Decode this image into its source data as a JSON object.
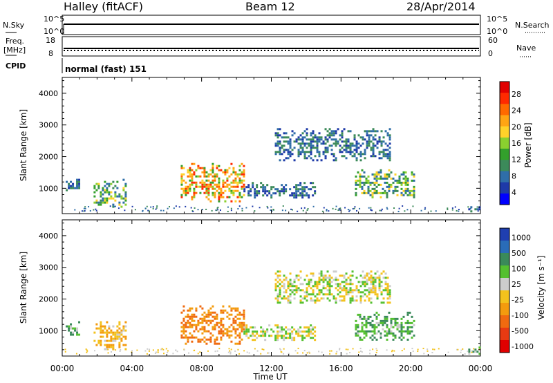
{
  "header": {
    "station": "Halley (fitACF)",
    "beam": "Beam 12",
    "date": "28/Apr/2014"
  },
  "labels": {
    "n_sky": "N.Sky",
    "n_search": "N.Search",
    "freq": "Freq.",
    "freq_unit": "[MHz]",
    "nave": "Nave",
    "cpid": "CPID",
    "cpid_value": "normal (fast) 151",
    "slant_range": "Slant Range [km]",
    "time": "Time UT",
    "power": "Power [dB]",
    "velocity": "Velocity [m s⁻¹]"
  },
  "chart_data": [
    {
      "type": "line",
      "name": "noise",
      "left_ticks": [
        "10^5",
        "10^0"
      ],
      "right_ticks": [
        "10^5",
        "10^0"
      ],
      "description": "N.Sky and N.Search noise levels nearly constant at ~10^4 through the day"
    },
    {
      "type": "scatter",
      "name": "freq-nave",
      "left_ticks": [
        "18",
        "8"
      ],
      "right_ticks": [
        "60",
        "0"
      ],
      "freq_mhz": 12,
      "nave": 40
    },
    {
      "type": "heatmap",
      "name": "power",
      "x_ticks": [
        "00:00",
        "04:00",
        "08:00",
        "12:00",
        "16:00",
        "20:00",
        "00:00"
      ],
      "y_ticks": [
        1000,
        2000,
        3000,
        4000
      ],
      "ylim": [
        200,
        4500
      ],
      "colorbar": {
        "label": "Power [dB]",
        "ticks": [
          4,
          8,
          12,
          16,
          20,
          24,
          28
        ],
        "colors": [
          "#0000ff",
          "#1e3aa8",
          "#2f6ea8",
          "#3c8a5a",
          "#33a02c",
          "#8bd02f",
          "#ffd22a",
          "#ffa514",
          "#ff6a00",
          "#ff2a00",
          "#e10000"
        ]
      },
      "echo_regions": [
        {
          "t_start": 0.2,
          "t_end": 1.0,
          "range_km": [
            900,
            1300
          ],
          "level": "low"
        },
        {
          "t_start": 1.8,
          "t_end": 3.6,
          "range_km": [
            400,
            1300
          ],
          "level": "medium"
        },
        {
          "t_start": 6.8,
          "t_end": 10.4,
          "range_km": [
            600,
            1800
          ],
          "level": "high"
        },
        {
          "t_start": 10.4,
          "t_end": 14.5,
          "range_km": [
            700,
            1200
          ],
          "level": "low"
        },
        {
          "t_start": 12.2,
          "t_end": 18.8,
          "range_km": [
            1900,
            2900
          ],
          "level": "low"
        },
        {
          "t_start": 16.8,
          "t_end": 20.2,
          "range_km": [
            700,
            1600
          ],
          "level": "medium"
        },
        {
          "t_start": 23.3,
          "t_end": 24.0,
          "range_km": [
            250,
            500
          ],
          "level": "low"
        }
      ]
    },
    {
      "type": "heatmap",
      "name": "velocity",
      "x_ticks": [
        "00:00",
        "04:00",
        "08:00",
        "12:00",
        "16:00",
        "20:00",
        "00:00"
      ],
      "y_ticks": [
        1000,
        2000,
        3000,
        4000
      ],
      "ylim": [
        200,
        4500
      ],
      "colorbar": {
        "label": "Velocity [m s⁻¹]",
        "ticks": [
          1000,
          500,
          100,
          25,
          -25,
          -100,
          -500,
          -1000
        ],
        "colors": [
          "#1f3fb0",
          "#2a6cb8",
          "#3a8a5a",
          "#54c030",
          "#cccccc",
          "#f3c21d",
          "#f39b0e",
          "#f06a10",
          "#e83a12",
          "#e00000"
        ]
      },
      "echo_regions": [
        {
          "t_start": 0.2,
          "t_end": 1.0,
          "range_km": [
            900,
            1300
          ],
          "velocity": 100
        },
        {
          "t_start": 1.8,
          "t_end": 3.6,
          "range_km": [
            400,
            1300
          ],
          "velocity": -100
        },
        {
          "t_start": 6.8,
          "t_end": 10.4,
          "range_km": [
            600,
            1800
          ],
          "velocity": -500
        },
        {
          "t_start": 10.4,
          "t_end": 14.5,
          "range_km": [
            700,
            1200
          ],
          "velocity": 0
        },
        {
          "t_start": 12.2,
          "t_end": 18.8,
          "range_km": [
            1900,
            2900
          ],
          "velocity": 0
        },
        {
          "t_start": 16.8,
          "t_end": 20.2,
          "range_km": [
            700,
            1600
          ],
          "velocity": 100
        },
        {
          "t_start": 23.3,
          "t_end": 24.0,
          "range_km": [
            250,
            500
          ],
          "velocity": 100
        }
      ]
    }
  ]
}
